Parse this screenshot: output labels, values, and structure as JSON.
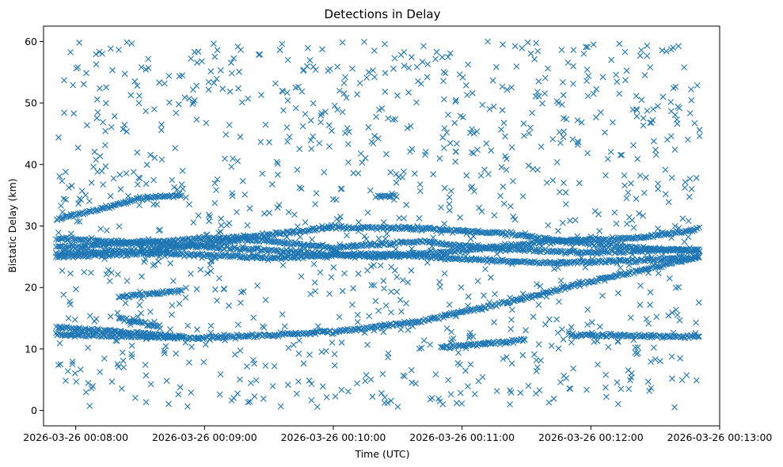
{
  "chart_data": {
    "type": "scatter",
    "title": "Detections in Delay",
    "xlabel": "Time (UTC)",
    "ylabel": "Bistatic Delay (km)",
    "marker": "x",
    "color": "#1f77b4",
    "grid": false,
    "xlim": [
      "2026-03-26 00:07:45",
      "2026-03-26 00:13:00"
    ],
    "ylim": [
      -2.5,
      62.5
    ],
    "x_ticks": [
      "2026-03-26 00:08:00",
      "2026-03-26 00:09:00",
      "2026-03-26 00:10:00",
      "2026-03-26 00:11:00",
      "2026-03-26 00:12:00",
      "2026-03-26 00:13:00"
    ],
    "y_ticks": [
      0,
      10,
      20,
      30,
      40,
      50,
      60
    ],
    "x_range": [
      "2026-03-26 00:07:51",
      "2026-03-26 00:12:51"
    ],
    "tracks": [
      {
        "points": [
          [
            "2026-03-26 00:07:51",
            12.3
          ],
          [
            "2026-03-26 00:09:00",
            11.8
          ],
          [
            "2026-03-26 00:10:00",
            12.8
          ],
          [
            "2026-03-26 00:10:40",
            14.5
          ],
          [
            "2026-03-26 00:11:20",
            17.5
          ],
          [
            "2026-03-26 00:12:00",
            21.0
          ],
          [
            "2026-03-26 00:12:51",
            25.0
          ]
        ]
      },
      {
        "points": [
          [
            "2026-03-26 00:07:51",
            25.0
          ],
          [
            "2026-03-26 00:08:40",
            25.6
          ],
          [
            "2026-03-26 00:09:30",
            24.8
          ],
          [
            "2026-03-26 00:10:20",
            25.5
          ],
          [
            "2026-03-26 00:11:00",
            24.6
          ],
          [
            "2026-03-26 00:11:40",
            24.0
          ],
          [
            "2026-03-26 00:12:20",
            24.3
          ],
          [
            "2026-03-26 00:12:51",
            25.0
          ]
        ]
      },
      {
        "points": [
          [
            "2026-03-26 00:07:51",
            26.5
          ],
          [
            "2026-03-26 00:08:40",
            27.5
          ],
          [
            "2026-03-26 00:09:30",
            28.5
          ],
          [
            "2026-03-26 00:10:00",
            29.8
          ],
          [
            "2026-03-26 00:10:40",
            29.6
          ],
          [
            "2026-03-26 00:11:20",
            28.8
          ],
          [
            "2026-03-26 00:12:00",
            27.0
          ],
          [
            "2026-03-26 00:12:51",
            25.8
          ]
        ]
      },
      {
        "points": [
          [
            "2026-03-26 00:07:51",
            28.0
          ],
          [
            "2026-03-26 00:08:40",
            27.0
          ],
          [
            "2026-03-26 00:09:30",
            26.0
          ],
          [
            "2026-03-26 00:10:20",
            25.0
          ],
          [
            "2026-03-26 00:11:00",
            26.0
          ],
          [
            "2026-03-26 00:11:40",
            27.5
          ],
          [
            "2026-03-26 00:12:20",
            28.0
          ],
          [
            "2026-03-26 00:12:51",
            29.5
          ]
        ]
      },
      {
        "points": [
          [
            "2026-03-26 00:07:51",
            25.5
          ],
          [
            "2026-03-26 00:08:40",
            26.2
          ],
          [
            "2026-03-26 00:09:20",
            27.8
          ],
          [
            "2026-03-26 00:10:00",
            26.5
          ],
          [
            "2026-03-26 00:10:40",
            27.5
          ],
          [
            "2026-03-26 00:11:20",
            26.2
          ],
          [
            "2026-03-26 00:12:00",
            25.7
          ],
          [
            "2026-03-26 00:12:51",
            26.2
          ]
        ]
      },
      {
        "points": [
          [
            "2026-03-26 00:07:51",
            13.5
          ],
          [
            "2026-03-26 00:08:20",
            12.8
          ],
          [
            "2026-03-26 00:08:50",
            12.0
          ]
        ]
      },
      {
        "points": [
          [
            "2026-03-26 00:08:20",
            15.0
          ],
          [
            "2026-03-26 00:08:40",
            13.5
          ]
        ]
      },
      {
        "points": [
          [
            "2026-03-26 00:10:50",
            10.2
          ],
          [
            "2026-03-26 00:11:30",
            11.5
          ]
        ]
      },
      {
        "points": [
          [
            "2026-03-26 00:11:50",
            12.2
          ],
          [
            "2026-03-26 00:12:51",
            12.0
          ]
        ]
      },
      {
        "points": [
          [
            "2026-03-26 00:08:20",
            18.5
          ],
          [
            "2026-03-26 00:08:50",
            19.5
          ]
        ]
      },
      {
        "points": [
          [
            "2026-03-26 00:07:51",
            31.0
          ],
          [
            "2026-03-26 00:08:30",
            34.5
          ],
          [
            "2026-03-26 00:08:50",
            35.0
          ]
        ]
      },
      {
        "points": [
          [
            "2026-03-26 00:10:20",
            34.8
          ],
          [
            "2026-03-26 00:10:30",
            35.0
          ]
        ]
      }
    ],
    "noise": {
      "count": 1150,
      "ylim": [
        0.5,
        60
      ],
      "seed": 7
    }
  }
}
